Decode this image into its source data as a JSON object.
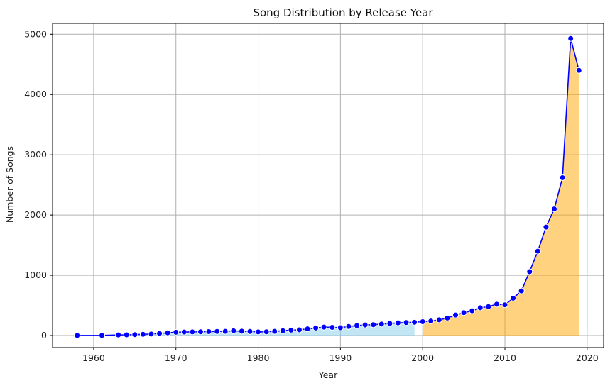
{
  "chart_data": {
    "type": "line",
    "title": "Song Distribution by Release Year",
    "xlabel": "Year",
    "ylabel": "Number of Songs",
    "xlim": [
      1955,
      2022
    ],
    "ylim": [
      -200,
      5180
    ],
    "x_ticks": [
      1960,
      1970,
      1980,
      1990,
      2000,
      2010,
      2020
    ],
    "y_ticks": [
      0,
      1000,
      2000,
      3000,
      4000,
      5000
    ],
    "grid": true,
    "line_color": "#0000ff",
    "marker_color": "#0000ff",
    "shaded_regions": [
      {
        "from": 1958,
        "to": 1999,
        "color": "#87ceeb"
      },
      {
        "from": 2000,
        "to": 2019,
        "color": "#ffa500"
      }
    ],
    "x": [
      1958,
      1961,
      1963,
      1964,
      1965,
      1966,
      1967,
      1968,
      1969,
      1970,
      1971,
      1972,
      1973,
      1974,
      1975,
      1976,
      1977,
      1978,
      1979,
      1980,
      1981,
      1982,
      1983,
      1984,
      1985,
      1986,
      1987,
      1988,
      1989,
      1990,
      1991,
      1992,
      1993,
      1994,
      1995,
      1996,
      1997,
      1998,
      1999,
      2000,
      2001,
      2002,
      2003,
      2004,
      2005,
      2006,
      2007,
      2008,
      2009,
      2010,
      2011,
      2012,
      2013,
      2014,
      2015,
      2016,
      2017,
      2018,
      2019
    ],
    "y": [
      1,
      2,
      10,
      12,
      15,
      20,
      25,
      35,
      45,
      55,
      58,
      60,
      62,
      65,
      68,
      70,
      78,
      72,
      68,
      60,
      62,
      70,
      80,
      90,
      95,
      110,
      125,
      140,
      135,
      130,
      150,
      165,
      175,
      180,
      190,
      200,
      210,
      215,
      220,
      230,
      240,
      260,
      290,
      340,
      380,
      410,
      460,
      480,
      520,
      510,
      620,
      740,
      1060,
      1400,
      1800,
      2100,
      2620,
      4930,
      4400
    ]
  }
}
